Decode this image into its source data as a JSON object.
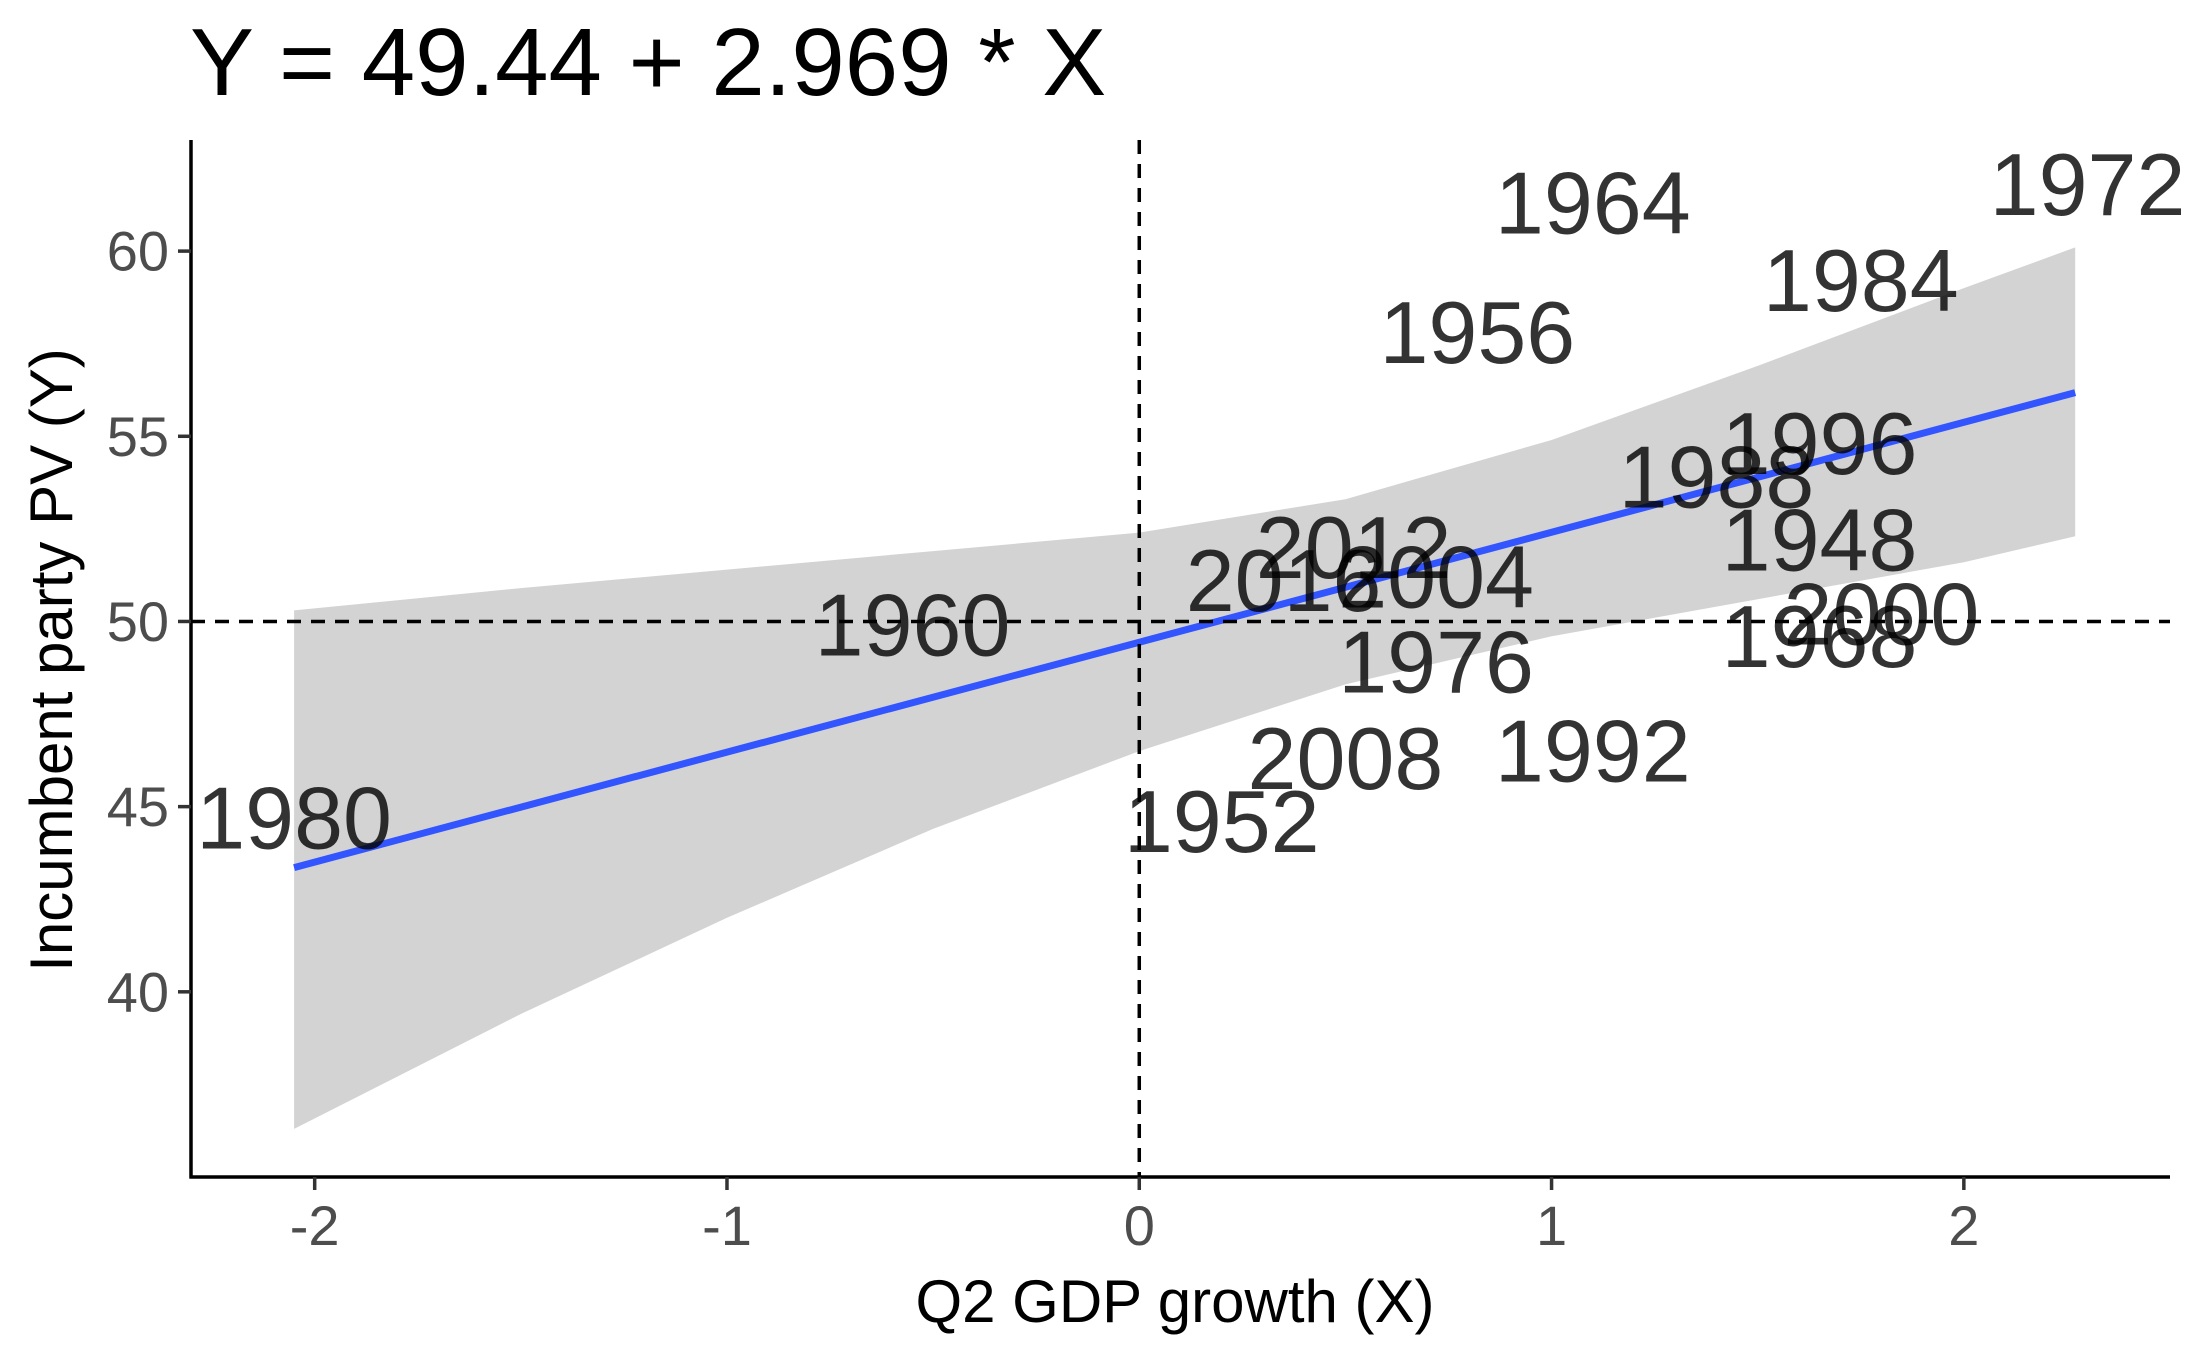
{
  "chart_data": {
    "type": "scatter",
    "title": "Y = 49.44 + 2.969 * X",
    "xlabel": "Q2 GDP growth (X)",
    "ylabel": "Incumbent party PV (Y)",
    "xlim": [
      -2.3,
      2.5
    ],
    "ylim": [
      35,
      63
    ],
    "x_ticks": [
      -2,
      -1,
      0,
      1,
      2
    ],
    "x_tick_labels": [
      "-2",
      "-1",
      "0",
      "1",
      "2"
    ],
    "y_ticks": [
      40,
      45,
      50,
      55,
      60
    ],
    "y_tick_labels": [
      "40",
      "45",
      "50",
      "55",
      "60"
    ],
    "grid": false,
    "legend": "none",
    "reference_lines": {
      "x": 0,
      "y": 50
    },
    "regression": {
      "intercept": 49.44,
      "slope": 2.969,
      "x_range": [
        -2.05,
        2.27
      ],
      "band": [
        {
          "x": -2.05,
          "lower": 36.3,
          "upper": 50.3
        },
        {
          "x": -1.5,
          "lower": 39.4,
          "upper": 50.9
        },
        {
          "x": -1.0,
          "lower": 42.0,
          "upper": 51.4
        },
        {
          "x": -0.5,
          "lower": 44.4,
          "upper": 51.9
        },
        {
          "x": 0.0,
          "lower": 46.5,
          "upper": 52.4
        },
        {
          "x": 0.5,
          "lower": 48.3,
          "upper": 53.3
        },
        {
          "x": 1.0,
          "lower": 49.6,
          "upper": 54.9
        },
        {
          "x": 1.5,
          "lower": 50.6,
          "upper": 56.9
        },
        {
          "x": 2.0,
          "lower": 51.6,
          "upper": 59.0
        },
        {
          "x": 2.27,
          "lower": 52.3,
          "upper": 60.1
        }
      ]
    },
    "points": [
      {
        "label": "1948",
        "x": 1.65,
        "y": 52.2
      },
      {
        "label": "1952",
        "x": 0.2,
        "y": 44.6
      },
      {
        "label": "1956",
        "x": 0.82,
        "y": 57.8
      },
      {
        "label": "1960",
        "x": -0.55,
        "y": 49.9
      },
      {
        "label": "1964",
        "x": 1.1,
        "y": 61.3
      },
      {
        "label": "1968",
        "x": 1.65,
        "y": 49.6
      },
      {
        "label": "1972",
        "x": 2.3,
        "y": 61.8
      },
      {
        "label": "1976",
        "x": 0.72,
        "y": 48.9
      },
      {
        "label": "1980",
        "x": -2.05,
        "y": 44.7
      },
      {
        "label": "1984",
        "x": 1.75,
        "y": 59.2
      },
      {
        "label": "1988",
        "x": 1.4,
        "y": 53.9
      },
      {
        "label": "1992",
        "x": 1.1,
        "y": 46.5
      },
      {
        "label": "1996",
        "x": 1.65,
        "y": 54.8
      },
      {
        "label": "2000",
        "x": 1.8,
        "y": 50.2
      },
      {
        "label": "2004",
        "x": 0.72,
        "y": 51.2
      },
      {
        "label": "2008",
        "x": 0.5,
        "y": 46.3
      },
      {
        "label": "2012",
        "x": 0.52,
        "y": 52.0
      },
      {
        "label": "2016",
        "x": 0.35,
        "y": 51.1
      }
    ],
    "colors": {
      "line": "#3355ff",
      "band": "#d3d3d3",
      "axis": "#000000",
      "tick_text": "#4d4d4d",
      "point_label": "#000000"
    }
  }
}
